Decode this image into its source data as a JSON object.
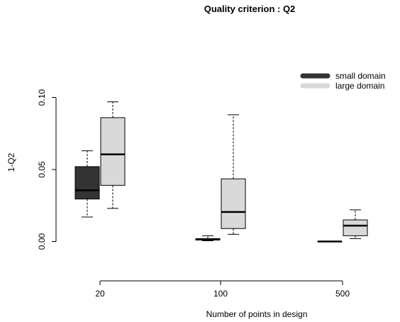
{
  "chart_data": {
    "type": "boxplot",
    "title": "Quality criterion : Q2",
    "xlabel": "Number of points in design",
    "ylabel": "1-Q2",
    "ylim": [
      -0.01,
      0.103
    ],
    "yticks": [
      "0.00",
      "0.05",
      "0.10"
    ],
    "categories": [
      "20",
      "100",
      "500"
    ],
    "legend_position": "top-right",
    "series": [
      {
        "name": "small domain",
        "color": "#333333",
        "boxes": [
          {
            "category": "20",
            "whisker_low": 0.017,
            "q1": 0.0295,
            "median": 0.0355,
            "q3": 0.052,
            "whisker_high": 0.063
          },
          {
            "category": "100",
            "whisker_low": 0.0005,
            "q1": 0.001,
            "median": 0.0015,
            "q3": 0.002,
            "whisker_high": 0.004
          },
          {
            "category": "500",
            "whisker_low": 0.0,
            "q1": 0.0,
            "median": 0.0,
            "q3": 0.0,
            "whisker_high": 0.0
          }
        ]
      },
      {
        "name": "large domain",
        "color": "#d9d9d9",
        "boxes": [
          {
            "category": "20",
            "whisker_low": 0.023,
            "q1": 0.039,
            "median": 0.0605,
            "q3": 0.086,
            "whisker_high": 0.097
          },
          {
            "category": "100",
            "whisker_low": 0.005,
            "q1": 0.009,
            "median": 0.0205,
            "q3": 0.0435,
            "whisker_high": 0.088
          },
          {
            "category": "500",
            "whisker_low": 0.002,
            "q1": 0.004,
            "median": 0.011,
            "q3": 0.015,
            "whisker_high": 0.022
          }
        ]
      }
    ]
  }
}
